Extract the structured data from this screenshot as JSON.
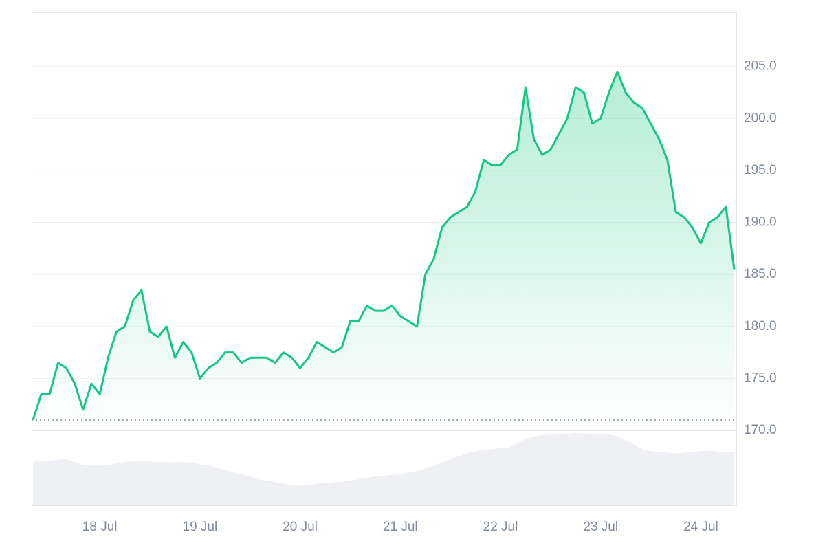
{
  "chart_data": {
    "type": "line",
    "categories": [
      null,
      null,
      null,
      null,
      null,
      null,
      null,
      null,
      "18 Jul",
      null,
      null,
      null,
      null,
      null,
      null,
      null,
      null,
      null,
      null,
      null,
      "19 Jul",
      null,
      null,
      null,
      null,
      null,
      null,
      null,
      null,
      null,
      null,
      null,
      "20 Jul",
      null,
      null,
      null,
      null,
      null,
      null,
      null,
      null,
      null,
      null,
      null,
      "21 Jul",
      null,
      null,
      null,
      null,
      null,
      null,
      null,
      null,
      null,
      null,
      null,
      "22 Jul",
      null,
      null,
      null,
      null,
      null,
      null,
      null,
      null,
      null,
      null,
      null,
      "23 Jul",
      null,
      null,
      null,
      null,
      null,
      null,
      null,
      null,
      null,
      null,
      null,
      "24 Jul",
      null,
      null,
      null,
      null
    ],
    "values": [
      171,
      173.5,
      173.5,
      176.5,
      176,
      174.5,
      172,
      174.5,
      173.5,
      177,
      179.5,
      180,
      182.5,
      183.5,
      179.5,
      179,
      180,
      177,
      178.5,
      177.5,
      175,
      176,
      176.5,
      177.5,
      177.5,
      176.5,
      177,
      177,
      177,
      176.5,
      177.5,
      177,
      176,
      177,
      178.5,
      178,
      177.5,
      178,
      180.5,
      180.5,
      182,
      181.5,
      181.5,
      182,
      181,
      180.5,
      180,
      185,
      186.5,
      189.5,
      190.5,
      191,
      191.5,
      193,
      196,
      195.5,
      195.5,
      196.5,
      197,
      203,
      198,
      196.5,
      197,
      198.5,
      200,
      203,
      202.5,
      199.5,
      200,
      202.5,
      204.5,
      202.5,
      201.5,
      201,
      199.5,
      198,
      196,
      191,
      190.5,
      189.5,
      188,
      190,
      190.5,
      191.5,
      185.5
    ],
    "color": "#16c784",
    "volume": {
      "color": "#eef0f3",
      "values": [
        60,
        61,
        62,
        63,
        64,
        60,
        56,
        55,
        55,
        56,
        58,
        60,
        61,
        62,
        61,
        60,
        60,
        59,
        60,
        59,
        57,
        55,
        52,
        49,
        46,
        43,
        40,
        36,
        34,
        32,
        30,
        28,
        27,
        28,
        30,
        31,
        32,
        33,
        34,
        36,
        38,
        40,
        41,
        42,
        43,
        45,
        48,
        51,
        55,
        60,
        64,
        68,
        72,
        75,
        77,
        78,
        79,
        80,
        86,
        92,
        95,
        97,
        98,
        98,
        99,
        100,
        99,
        98,
        98,
        98,
        96,
        90,
        84,
        78,
        75,
        74,
        73,
        72,
        73,
        74,
        75,
        76,
        74,
        74,
        74
      ]
    },
    "ylim": [
      162.8,
      210.2
    ],
    "yticks": [
      {
        "value": 170,
        "label": "170.0"
      },
      {
        "value": 175,
        "label": "175.0"
      },
      {
        "value": 180,
        "label": "180.0"
      },
      {
        "value": 185,
        "label": "185.0"
      },
      {
        "value": 190,
        "label": "190.0"
      },
      {
        "value": 195,
        "label": "195.0"
      },
      {
        "value": 200,
        "label": "200.0"
      },
      {
        "value": 205,
        "label": "205.0"
      }
    ],
    "grid": true
  }
}
